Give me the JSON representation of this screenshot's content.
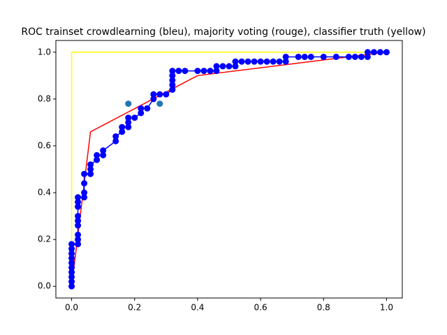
{
  "chart_data": {
    "type": "line",
    "title": "ROC trainset crowdlearning (bleu), majority voting (rouge), classifier truth (yellow)",
    "xlim": [
      -0.05,
      1.05
    ],
    "ylim": [
      -0.05,
      1.05
    ],
    "xticks": [
      {
        "value": 0,
        "label": "0.0"
      },
      {
        "value": 0.2,
        "label": "0.2"
      },
      {
        "value": 0.4,
        "label": "0.4"
      },
      {
        "value": 0.6,
        "label": "0.6"
      },
      {
        "value": 0.8,
        "label": "0.8"
      },
      {
        "value": 1,
        "label": "1.0"
      }
    ],
    "yticks": [
      {
        "value": 0,
        "label": "0.0"
      },
      {
        "value": 0.2,
        "label": "0.2"
      },
      {
        "value": 0.4,
        "label": "0.4"
      },
      {
        "value": 0.6,
        "label": "0.6"
      },
      {
        "value": 0.8,
        "label": "0.8"
      },
      {
        "value": 1,
        "label": "1.0"
      }
    ],
    "grid": false,
    "series": [
      {
        "color": "#ffff00",
        "line": true,
        "marker": false,
        "x": [
          0,
          0,
          1
        ],
        "values": [
          0,
          1,
          1
        ]
      },
      {
        "color": "#ff0000",
        "line": true,
        "marker": false,
        "x": [
          0,
          0.06,
          0.4,
          1
        ],
        "values": [
          0,
          0.66,
          0.9,
          1
        ]
      },
      {
        "color": "#0000ff",
        "line": true,
        "marker": true,
        "x": [
          0,
          0,
          0,
          0,
          0,
          0,
          0,
          0,
          0,
          0,
          0.02,
          0.02,
          0.02,
          0.02,
          0.02,
          0.02,
          0.02,
          0.02,
          0.02,
          0.04,
          0.04,
          0.04,
          0.04,
          0.06,
          0.06,
          0.06,
          0.08,
          0.08,
          0.1,
          0.1,
          0.14,
          0.14,
          0.16,
          0.16,
          0.18,
          0.18,
          0.18,
          0.2,
          0.22,
          0.22,
          0.24,
          0.26,
          0.26,
          0.28,
          0.3,
          0.32,
          0.32,
          0.32,
          0.32,
          0.32,
          0.34,
          0.36,
          0.4,
          0.42,
          0.44,
          0.46,
          0.46,
          0.48,
          0.5,
          0.52,
          0.52,
          0.54,
          0.56,
          0.58,
          0.6,
          0.62,
          0.64,
          0.66,
          0.68,
          0.68,
          0.72,
          0.74,
          0.76,
          0.8,
          0.84,
          0.88,
          0.9,
          0.92,
          0.94,
          0.94,
          0.96,
          0.98,
          1
        ],
        "values": [
          0,
          0.02,
          0.04,
          0.06,
          0.08,
          0.1,
          0.12,
          0.14,
          0.16,
          0.18,
          0.18,
          0.2,
          0.22,
          0.26,
          0.28,
          0.3,
          0.34,
          0.36,
          0.38,
          0.38,
          0.4,
          0.44,
          0.48,
          0.48,
          0.5,
          0.52,
          0.54,
          0.56,
          0.56,
          0.58,
          0.62,
          0.64,
          0.66,
          0.68,
          0.68,
          0.7,
          0.72,
          0.72,
          0.74,
          0.76,
          0.76,
          0.8,
          0.82,
          0.82,
          0.82,
          0.84,
          0.86,
          0.88,
          0.9,
          0.92,
          0.92,
          0.92,
          0.92,
          0.92,
          0.92,
          0.92,
          0.94,
          0.94,
          0.94,
          0.94,
          0.96,
          0.96,
          0.96,
          0.96,
          0.96,
          0.96,
          0.96,
          0.96,
          0.96,
          0.98,
          0.98,
          0.98,
          0.98,
          0.98,
          0.98,
          0.98,
          0.98,
          0.98,
          0.98,
          1,
          1,
          1,
          1
        ]
      },
      {
        "color": "#1f77b4",
        "line": false,
        "marker": true,
        "x": [
          0.18,
          0.28
        ],
        "values": [
          0.78,
          0.78
        ]
      }
    ]
  }
}
